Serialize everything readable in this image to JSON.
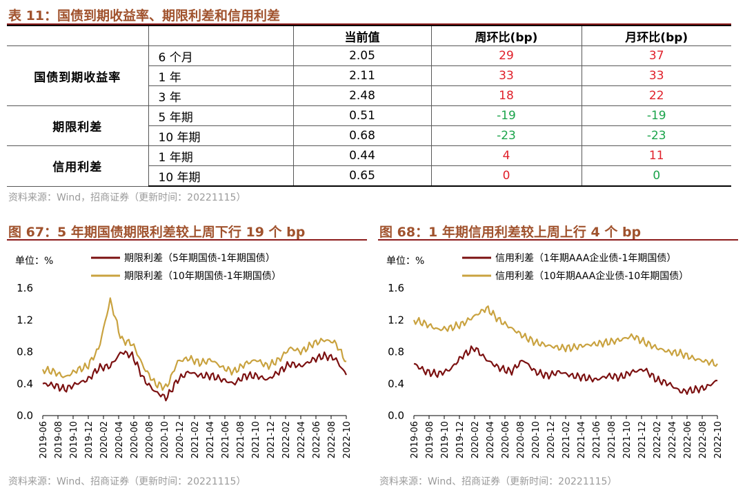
{
  "table": {
    "title": "表 11：国债到期收益率、期限利差和信用利差",
    "headers": [
      "",
      "",
      "当前值",
      "周环比(bp)",
      "月环比(bp)"
    ],
    "groups": [
      {
        "name": "国债到期收益率",
        "rows": [
          {
            "label": "6 个月",
            "value": "2.05",
            "wow": "29",
            "mom": "37",
            "wow_color": "red",
            "mom_color": "red"
          },
          {
            "label": "1 年",
            "value": "2.11",
            "wow": "33",
            "mom": "33",
            "wow_color": "red",
            "mom_color": "red"
          },
          {
            "label": "3 年",
            "value": "2.48",
            "wow": "18",
            "mom": "22",
            "wow_color": "red",
            "mom_color": "red"
          }
        ]
      },
      {
        "name": "期限利差",
        "rows": [
          {
            "label": "5 年期",
            "value": "0.51",
            "wow": "-19",
            "mom": "-19",
            "wow_color": "green",
            "mom_color": "green"
          },
          {
            "label": "10 年期",
            "value": "0.68",
            "wow": "-23",
            "mom": "-23",
            "wow_color": "green",
            "mom_color": "green"
          }
        ]
      },
      {
        "name": "信用利差",
        "rows": [
          {
            "label": "1 年期",
            "value": "0.44",
            "wow": "4",
            "mom": "11",
            "wow_color": "red",
            "mom_color": "red"
          },
          {
            "label": "10 年期",
            "value": "0.65",
            "wow": "0",
            "mom": "0",
            "wow_color": "red",
            "mom_color": "green"
          }
        ]
      }
    ],
    "source": "资料来源：Wind，招商证券（更新时间：20221115）"
  },
  "chart_left_source": "资料来源：Wind、招商证券（更新时间：20221115）",
  "chart_right_source": "资料来源：Wind、招商证券（更新时间：20221115）",
  "colors": {
    "dark": "#7b1010",
    "gold": "#c9a23f",
    "title": "#a0522d"
  },
  "chart_data": [
    {
      "type": "line",
      "title": "图 67：5 年期国债期限利差较上周下行 19 个 bp",
      "unit_label": "单位：%",
      "x_ticks": [
        "2019-06",
        "2019-08",
        "2019-10",
        "2019-12",
        "2020-02",
        "2020-04",
        "2020-06",
        "2020-08",
        "2020-10",
        "2020-12",
        "2021-02",
        "2021-04",
        "2021-06",
        "2021-08",
        "2021-10",
        "2021-12",
        "2022-02",
        "2022-04",
        "2022-06",
        "2022-08",
        "2022-10"
      ],
      "ylim": [
        0,
        1.6
      ],
      "y_ticks": [
        "0.0",
        "0.4",
        "0.8",
        "1.2",
        "1.6"
      ],
      "legend_position": "top",
      "series": [
        {
          "name": "期限利差（5年期国债-1年期国债）",
          "color": "dark",
          "values": [
            0.4,
            0.38,
            0.33,
            0.4,
            0.45,
            0.6,
            0.62,
            0.8,
            0.75,
            0.45,
            0.3,
            0.22,
            0.45,
            0.55,
            0.5,
            0.5,
            0.45,
            0.4,
            0.5,
            0.5,
            0.45,
            0.55,
            0.65,
            0.62,
            0.7,
            0.75,
            0.72,
            0.51
          ]
        },
        {
          "name": "期限利差（10年期国债-1年期国债）",
          "color": "gold",
          "values": [
            0.58,
            0.55,
            0.48,
            0.57,
            0.62,
            0.85,
            1.45,
            0.95,
            0.9,
            0.6,
            0.4,
            0.35,
            0.68,
            0.72,
            0.66,
            0.7,
            0.6,
            0.55,
            0.65,
            0.7,
            0.62,
            0.7,
            0.85,
            0.8,
            0.9,
            0.95,
            0.92,
            0.68
          ]
        }
      ]
    },
    {
      "type": "line",
      "title": "图 68：1 年期信用利差较上周上行 4 个 bp",
      "unit_label": "单位：%",
      "x_ticks": [
        "2019-06",
        "2019-08",
        "2019-10",
        "2019-12",
        "2020-02",
        "2020-04",
        "2020-06",
        "2020-08",
        "2020-10",
        "2020-12",
        "2021-02",
        "2021-04",
        "2021-06",
        "2021-08",
        "2021-10",
        "2021-12",
        "2022-02",
        "2022-04",
        "2022-06",
        "2022-08",
        "2022-10"
      ],
      "ylim": [
        0,
        1.6
      ],
      "y_ticks": [
        "0.0",
        "0.4",
        "0.8",
        "1.2",
        "1.6"
      ],
      "legend_position": "top",
      "series": [
        {
          "name": "信用利差（1年期AAA企业债-1年期国债）",
          "color": "dark",
          "values": [
            0.65,
            0.55,
            0.52,
            0.58,
            0.75,
            0.85,
            0.7,
            0.6,
            0.55,
            0.7,
            0.55,
            0.5,
            0.55,
            0.5,
            0.48,
            0.45,
            0.5,
            0.48,
            0.55,
            0.58,
            0.45,
            0.4,
            0.3,
            0.32,
            0.35,
            0.44
          ]
        },
        {
          "name": "信用利差（10年期AAA企业债-10年期国债）",
          "color": "gold",
          "values": [
            1.2,
            1.15,
            1.08,
            1.1,
            1.15,
            1.25,
            1.35,
            1.2,
            1.1,
            1.0,
            0.92,
            0.88,
            0.85,
            0.85,
            0.88,
            0.9,
            0.92,
            0.95,
            1.0,
            0.92,
            0.85,
            0.8,
            0.78,
            0.72,
            0.68,
            0.65
          ]
        }
      ]
    }
  ]
}
